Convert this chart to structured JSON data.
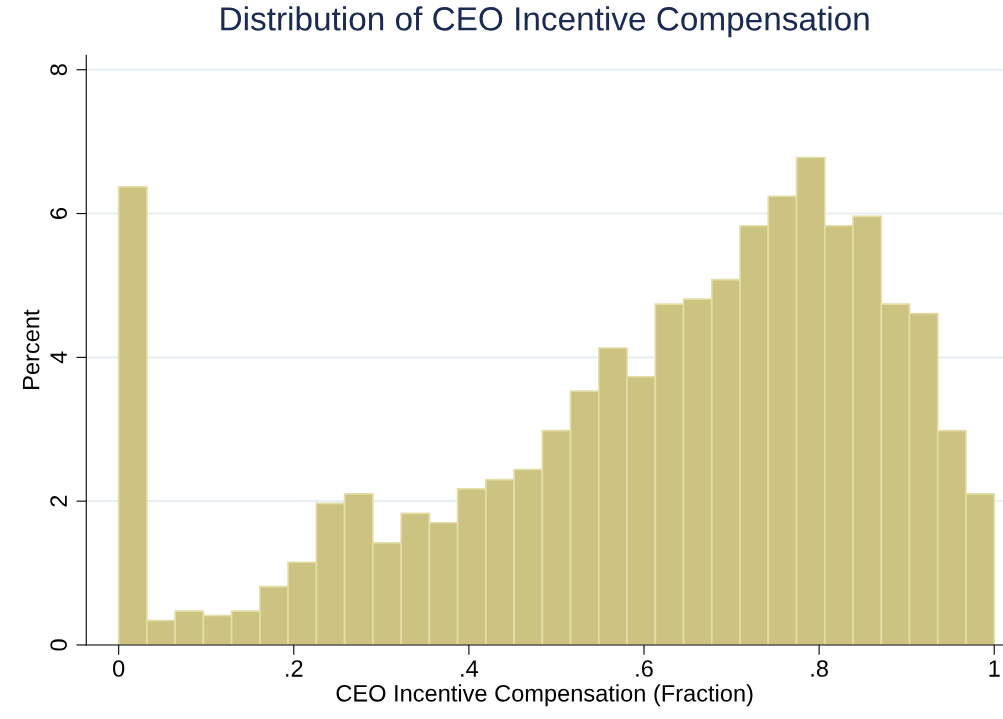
{
  "chart_data": {
    "type": "histogram",
    "title": "Distribution of CEO Incentive Compensation",
    "xlabel": "CEO Incentive Compensation (Fraction)",
    "ylabel": "Percent",
    "bins": [
      0,
      0.0323,
      0.0645,
      0.0968,
      0.129,
      0.1613,
      0.1935,
      0.2258,
      0.2581,
      0.2903,
      0.3226,
      0.3548,
      0.3871,
      0.4194,
      0.4516,
      0.4839,
      0.5161,
      0.5484,
      0.5806,
      0.6129,
      0.6452,
      0.6774,
      0.7097,
      0.7419,
      0.7742,
      0.8065,
      0.8387,
      0.871,
      0.9032,
      0.9355,
      0.9677,
      1
    ],
    "values": [
      6.37,
      0.34,
      0.47,
      0.41,
      0.47,
      0.81,
      1.15,
      1.97,
      2.1,
      1.42,
      1.83,
      1.7,
      2.17,
      2.3,
      2.44,
      2.98,
      3.53,
      4.13,
      3.73,
      4.74,
      4.81,
      5.08,
      5.83,
      6.24,
      6.78,
      5.83,
      5.96,
      4.74,
      4.61,
      2.98,
      2.1
    ],
    "color": "#cbc37f",
    "xlim": [
      -0.037,
      1.01
    ],
    "xticks": [
      0,
      {
        "value": 0.2,
        "label": ".2"
      },
      {
        "value": 0.4,
        "label": ".4"
      },
      {
        "value": 0.6,
        "label": ".6"
      },
      {
        "value": 0.8,
        "label": ".8"
      },
      1
    ],
    "ylim": [
      0,
      8.2
    ],
    "yticks": [
      0,
      2,
      4,
      6,
      8
    ],
    "grid": "y"
  }
}
